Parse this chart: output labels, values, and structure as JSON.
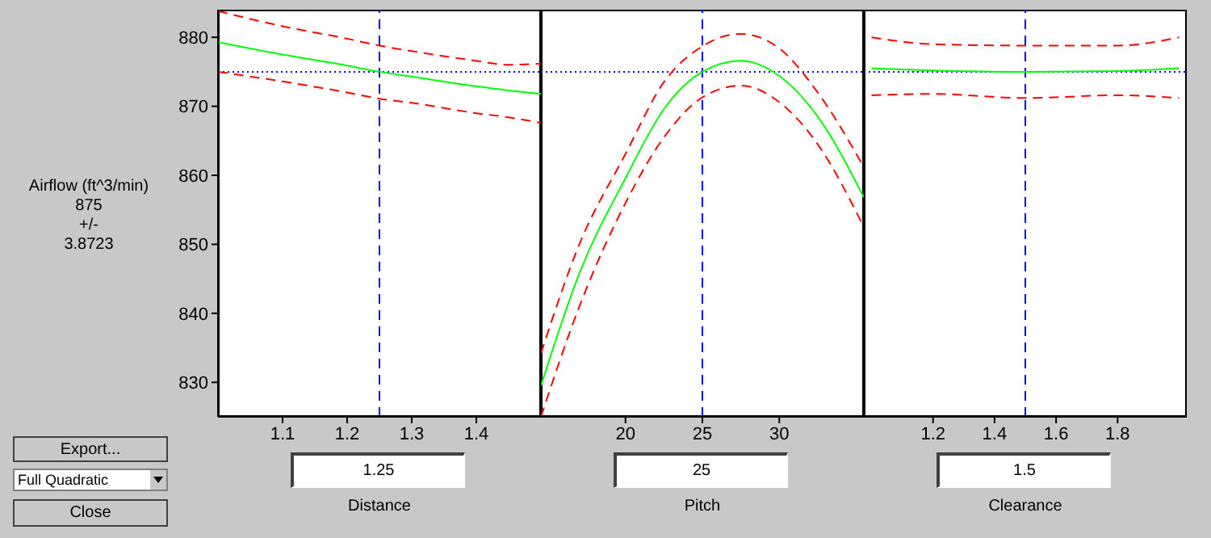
{
  "chart_data": [
    {
      "type": "line",
      "xlabel": "Distance",
      "ylabel": "Airflow (ft^3/min)",
      "annotations": [
        "875",
        "+/-",
        "3.8723",
        "Export...",
        "Full Quadratic",
        "Close",
        "1.25"
      ],
      "x": [
        1,
        1.1,
        1.2,
        1.25,
        1.3,
        1.4,
        1.45,
        1.5
      ],
      "xlim": [
        1,
        1.5
      ],
      "xticks": [
        1.1,
        1.2,
        1.3,
        1.4
      ],
      "ylim": [
        825,
        884
      ],
      "yticks": [
        830,
        840,
        850,
        860,
        870,
        880
      ],
      "series": [
        {
          "color": "#ff0000",
          "line_style": "dashed",
          "values": [
            883.8,
            881.6,
            879.8,
            878.8,
            878,
            876.6,
            876,
            876.2
          ]
        },
        {
          "color": "#00ff00",
          "line_style": "solid",
          "values": [
            879.3,
            877.5,
            875.9,
            875,
            874.3,
            872.9,
            872.3,
            871.8
          ]
        },
        {
          "color": "#ff0000",
          "line_style": "dashed",
          "values": [
            875,
            873.6,
            872,
            871.1,
            870.5,
            869,
            868.4,
            867.6
          ]
        }
      ],
      "ref_lines": [
        {
          "axis": "y",
          "value": 875,
          "color": "#0000ff",
          "line_style": "dotted"
        },
        {
          "axis": "x",
          "value": 1.25,
          "color": "#0000ff",
          "line_style": "dashed"
        }
      ]
    },
    {
      "type": "line",
      "xlabel": "Pitch",
      "annotations": [
        "25"
      ],
      "tick_labels": "x",
      "x": [
        14.5,
        17,
        20,
        22.5,
        25,
        27.5,
        30,
        32.5,
        35.5
      ],
      "xlim": [
        14.5,
        35.5
      ],
      "xticks": [
        20,
        25,
        30
      ],
      "ylim": [
        825,
        884
      ],
      "series": [
        {
          "color": "#ff0000",
          "line_style": "dashed",
          "values": [
            834.2,
            850,
            863.1,
            873.5,
            878.7,
            880.5,
            878.4,
            872,
            861.2
          ]
        },
        {
          "color": "#00ff00",
          "line_style": "solid",
          "values": [
            829.5,
            845.8,
            859.6,
            869.6,
            875,
            876.6,
            874.4,
            868.5,
            856.8
          ]
        },
        {
          "color": "#ff0000",
          "line_style": "dashed",
          "values": [
            825,
            841,
            856,
            865.5,
            871.3,
            873,
            870.6,
            864.5,
            852.5
          ]
        }
      ],
      "ref_lines": [
        {
          "axis": "y",
          "value": 875,
          "color": "#0000ff",
          "line_style": "dotted"
        },
        {
          "axis": "x",
          "value": 25,
          "color": "#0000ff",
          "line_style": "dashed"
        }
      ]
    },
    {
      "type": "line",
      "xlabel": "Clearance",
      "annotations": [
        "1.5"
      ],
      "tick_labels": "x",
      "x": [
        1,
        1.2,
        1.5,
        1.8,
        2
      ],
      "xlim": [
        0.975,
        2.025
      ],
      "xticks": [
        1.2,
        1.4,
        1.6,
        1.8
      ],
      "ylim": [
        825,
        884
      ],
      "series": [
        {
          "color": "#ff0000",
          "line_style": "dashed",
          "values": [
            880,
            879,
            878.8,
            878.8,
            880
          ]
        },
        {
          "color": "#00ff00",
          "line_style": "solid",
          "values": [
            875.5,
            875.2,
            875,
            875.1,
            875.5
          ]
        },
        {
          "color": "#ff0000",
          "line_style": "dashed",
          "values": [
            871.6,
            871.8,
            871.2,
            871.6,
            871.2
          ]
        }
      ],
      "ref_lines": [
        {
          "axis": "y",
          "value": 875,
          "color": "#0000ff",
          "line_style": "dotted"
        },
        {
          "axis": "x",
          "value": 1.5,
          "color": "#0000ff",
          "line_style": "dashed"
        }
      ]
    }
  ]
}
